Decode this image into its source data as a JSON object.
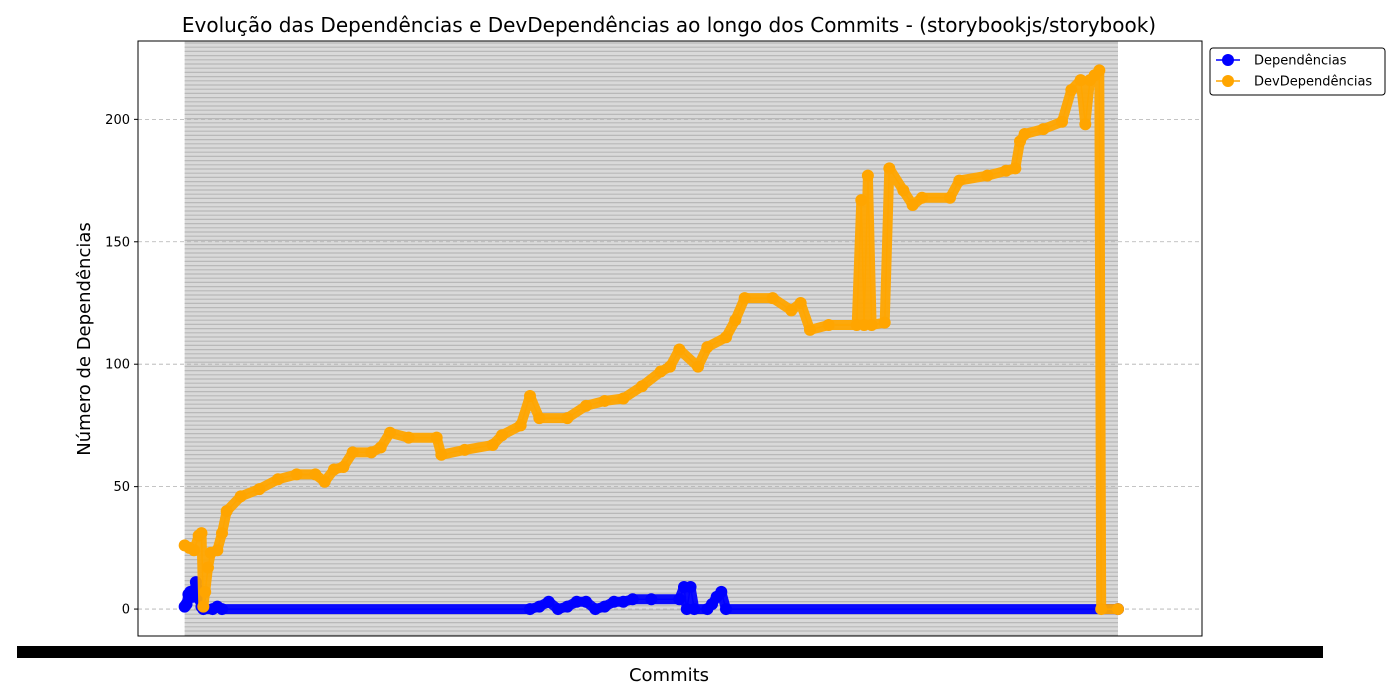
{
  "chart_data": {
    "type": "line",
    "title": "Evolução das Dependências e DevDependências ao longo dos Commits - (storybookjs/storybook)",
    "xlabel": "Commits",
    "ylabel": "Número de Dependências",
    "ylim": [
      -11,
      232
    ],
    "yticks": [
      0,
      50,
      100,
      150,
      200
    ],
    "xlim": [
      -0.05,
      1.09
    ],
    "grid": {
      "y": true,
      "x": true,
      "style": "dashed",
      "color": "#b0b0b0"
    },
    "legend_position": "upper-right-outside",
    "series": [
      {
        "name": "Dependências",
        "color": "#0000ff",
        "marker": "o",
        "points": [
          [
            0.0,
            1
          ],
          [
            0.002,
            2
          ],
          [
            0.004,
            6
          ],
          [
            0.006,
            7
          ],
          [
            0.008,
            5
          ],
          [
            0.01,
            6
          ],
          [
            0.012,
            11
          ],
          [
            0.014,
            8
          ],
          [
            0.016,
            4
          ],
          [
            0.018,
            1
          ],
          [
            0.02,
            0
          ],
          [
            0.03,
            0
          ],
          [
            0.035,
            1
          ],
          [
            0.04,
            0
          ],
          [
            0.37,
            0
          ],
          [
            0.38,
            1
          ],
          [
            0.39,
            3
          ],
          [
            0.4,
            0
          ],
          [
            0.41,
            1
          ],
          [
            0.42,
            3
          ],
          [
            0.43,
            3
          ],
          [
            0.44,
            0
          ],
          [
            0.45,
            1
          ],
          [
            0.46,
            3
          ],
          [
            0.47,
            3
          ],
          [
            0.48,
            4
          ],
          [
            0.5,
            4
          ],
          [
            0.53,
            4
          ],
          [
            0.535,
            9
          ],
          [
            0.538,
            0
          ],
          [
            0.542,
            9
          ],
          [
            0.546,
            0
          ],
          [
            0.56,
            0
          ],
          [
            0.565,
            2
          ],
          [
            0.57,
            5
          ],
          [
            0.575,
            7
          ],
          [
            0.58,
            0
          ],
          [
            1.0,
            0
          ]
        ]
      },
      {
        "name": "DevDependências",
        "color": "#ffa500",
        "marker": "o",
        "points": [
          [
            0.0,
            26
          ],
          [
            0.005,
            25
          ],
          [
            0.01,
            24
          ],
          [
            0.015,
            30
          ],
          [
            0.018,
            31
          ],
          [
            0.02,
            1
          ],
          [
            0.022,
            7
          ],
          [
            0.025,
            17
          ],
          [
            0.028,
            23
          ],
          [
            0.035,
            24
          ],
          [
            0.04,
            31
          ],
          [
            0.045,
            40
          ],
          [
            0.06,
            46
          ],
          [
            0.08,
            49
          ],
          [
            0.1,
            53
          ],
          [
            0.12,
            55
          ],
          [
            0.14,
            55
          ],
          [
            0.15,
            52
          ],
          [
            0.16,
            57
          ],
          [
            0.17,
            58
          ],
          [
            0.18,
            64
          ],
          [
            0.2,
            64
          ],
          [
            0.21,
            66
          ],
          [
            0.22,
            72
          ],
          [
            0.24,
            70
          ],
          [
            0.27,
            70
          ],
          [
            0.275,
            63
          ],
          [
            0.3,
            65
          ],
          [
            0.33,
            67
          ],
          [
            0.34,
            71
          ],
          [
            0.36,
            75
          ],
          [
            0.37,
            87
          ],
          [
            0.38,
            78
          ],
          [
            0.41,
            78
          ],
          [
            0.43,
            83
          ],
          [
            0.45,
            85
          ],
          [
            0.47,
            86
          ],
          [
            0.49,
            91
          ],
          [
            0.51,
            97
          ],
          [
            0.52,
            99
          ],
          [
            0.53,
            106
          ],
          [
            0.55,
            99
          ],
          [
            0.56,
            107
          ],
          [
            0.58,
            111
          ],
          [
            0.59,
            118
          ],
          [
            0.6,
            127
          ],
          [
            0.63,
            127
          ],
          [
            0.65,
            122
          ],
          [
            0.66,
            125
          ],
          [
            0.67,
            114
          ],
          [
            0.69,
            116
          ],
          [
            0.72,
            116
          ],
          [
            0.725,
            167
          ],
          [
            0.728,
            116
          ],
          [
            0.732,
            177
          ],
          [
            0.736,
            116
          ],
          [
            0.75,
            117
          ],
          [
            0.755,
            180
          ],
          [
            0.77,
            171
          ],
          [
            0.78,
            165
          ],
          [
            0.79,
            168
          ],
          [
            0.82,
            168
          ],
          [
            0.83,
            175
          ],
          [
            0.86,
            177
          ],
          [
            0.88,
            179
          ],
          [
            0.89,
            180
          ],
          [
            0.895,
            191
          ],
          [
            0.9,
            194
          ],
          [
            0.92,
            196
          ],
          [
            0.94,
            199
          ],
          [
            0.95,
            212
          ],
          [
            0.96,
            216
          ],
          [
            0.965,
            198
          ],
          [
            0.97,
            216
          ],
          [
            0.975,
            218
          ],
          [
            0.98,
            220
          ],
          [
            0.982,
            0
          ],
          [
            1.0,
            0
          ]
        ]
      }
    ]
  }
}
